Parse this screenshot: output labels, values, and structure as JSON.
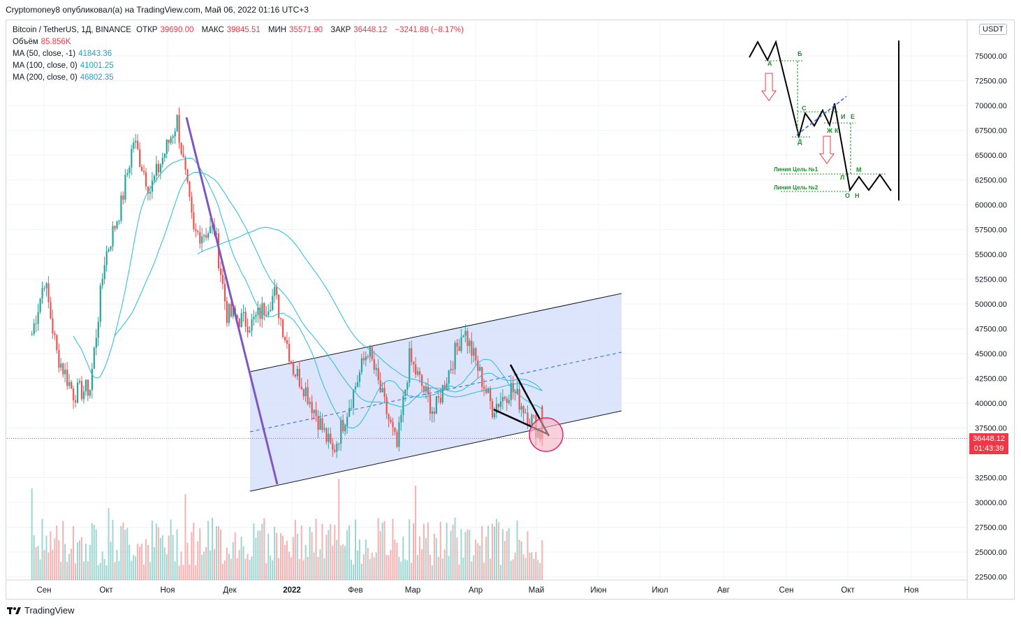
{
  "header": {
    "published_by": "Cryptomoney8 опубликовал(а) на TradingView.com, Май 06, 2022 01:16 UTC+3"
  },
  "legend": {
    "symbol": "Bitcoin / TetherUS, 1Д, BINANCE",
    "open_label": "ОТКР",
    "open_value": "39690.00",
    "high_label": "МАКС",
    "high_value": "39845.51",
    "low_label": "МИН",
    "low_value": "35571.90",
    "close_label": "ЗАКР",
    "close_value": "36448.12",
    "change": "−3241.88 (−8.17%)",
    "volume_label": "Объём",
    "volume_value": "85.856K",
    "ma50_label": "MA (50, close, -1)",
    "ma50_value": "41843.36",
    "ma100_label": "MA (100, close, 0)",
    "ma100_value": "41001.25",
    "ma200_label": "MA (200, close, 0)",
    "ma200_value": "46802.35"
  },
  "price_axis": {
    "currency_button": "USDT",
    "last_price": "36448.12",
    "countdown": "01:43:39"
  },
  "footer": {
    "brand": "TradingView"
  },
  "colors": {
    "bull": "#26a69a",
    "bear": "#ef5350",
    "ma": "#26bcd7",
    "channel_fill": "#d4defc",
    "trend": "#7e57c2",
    "last_price": "#f23645"
  },
  "chart_data": {
    "type": "candlestick",
    "title": "Bitcoin / TetherUS, 1Д, BINANCE",
    "ylim": [
      21900,
      77500
    ],
    "y_ticks": [
      "75000.00",
      "72500.00",
      "70000.00",
      "67500.00",
      "65000.00",
      "62500.00",
      "60000.00",
      "57500.00",
      "55000.00",
      "52500.00",
      "50000.00",
      "47500.00",
      "45000.00",
      "42500.00",
      "40000.00",
      "37500.00",
      "32500.00",
      "30000.00",
      "27500.00",
      "25000.00",
      "22500.00"
    ],
    "x_ticks": [
      "Сен",
      "Окт",
      "Ноя",
      "Дек",
      "2022",
      "Фев",
      "Мар",
      "Апр",
      "Май",
      "Июн",
      "Июл",
      "Авг",
      "Сен",
      "Окт",
      "Ноя"
    ],
    "price_path": [
      {
        "date": "Авг 20",
        "close": 48000
      },
      {
        "date": "Сен 01",
        "close": 47000
      },
      {
        "date": "Сен 07",
        "close": 52500
      },
      {
        "date": "Сен 13",
        "close": 45000
      },
      {
        "date": "Сен 21",
        "close": 41000
      },
      {
        "date": "Сен 29",
        "close": 41500
      },
      {
        "date": "Окт 06",
        "close": 54500
      },
      {
        "date": "Окт 14",
        "close": 60000
      },
      {
        "date": "Окт 20",
        "close": 66500
      },
      {
        "date": "Окт 28",
        "close": 61500
      },
      {
        "date": "Ноя 10",
        "close": 68500
      },
      {
        "date": "Ноя 18",
        "close": 57000
      },
      {
        "date": "Ноя 28",
        "close": 57500
      },
      {
        "date": "Дек 04",
        "close": 49000
      },
      {
        "date": "Дек 16",
        "close": 48000
      },
      {
        "date": "Дек 27",
        "close": 51000
      },
      {
        "date": "Янв 05",
        "close": 43500
      },
      {
        "date": "Янв 10",
        "close": 41800
      },
      {
        "date": "Янв 24",
        "close": 35000
      },
      {
        "date": "Фев 10",
        "close": 45500
      },
      {
        "date": "Фев 24",
        "close": 35500
      },
      {
        "date": "Мар 02",
        "close": 44500
      },
      {
        "date": "Мар 14",
        "close": 39000
      },
      {
        "date": "Мар 28",
        "close": 47500
      },
      {
        "date": "Апр 11",
        "close": 39500
      },
      {
        "date": "Апр 20",
        "close": 41500
      },
      {
        "date": "Май 01",
        "close": 38000
      },
      {
        "date": "Май 05",
        "close": 36448
      }
    ],
    "moving_averages": [
      {
        "name": "MA (50, close, -1)",
        "last": 41843.36
      },
      {
        "name": "MA (100, close, 0)",
        "last": 41001.25
      },
      {
        "name": "MA (200, close, 0)",
        "last": 46802.35
      }
    ],
    "annotations": {
      "channel_note": "ascending channel Jan 2022 → Jun 2022, lower bound ~31300 → 39300, upper bound ~43100 → 51100",
      "scheme_labels": [
        "А",
        "Б",
        "С",
        "Д",
        "Е",
        "Ж",
        "К",
        "И",
        "Л",
        "М",
        "О",
        "Н"
      ],
      "target1": "Линия Цель №1",
      "target2": "Линия Цель №2"
    }
  }
}
